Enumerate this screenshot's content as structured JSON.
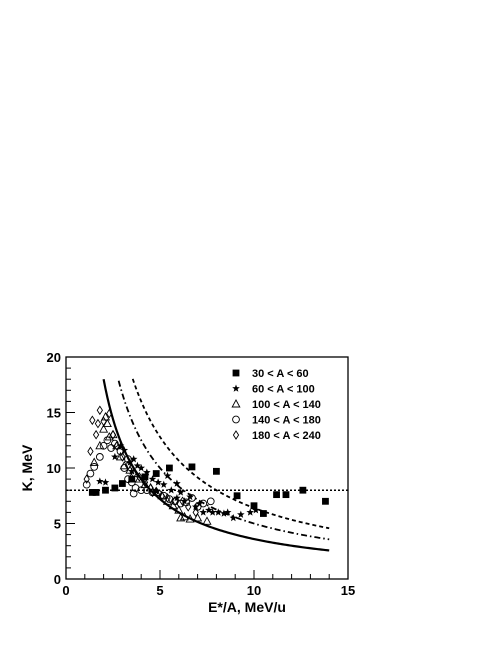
{
  "chart_data": {
    "type": "scatter",
    "title": "",
    "xlabel": "E*/A, MeV/u",
    "ylabel": "K, MeV",
    "xlim": [
      0,
      15
    ],
    "ylim": [
      0,
      20
    ],
    "xticks": [
      0,
      5,
      10,
      15
    ],
    "yticks": [
      0,
      5,
      10,
      15,
      20
    ],
    "xtick_labels": [
      "0",
      "5",
      "10",
      "15"
    ],
    "ytick_labels": [
      "0",
      "5",
      "10",
      "15",
      "20"
    ],
    "grid": false,
    "legend_position": "top-right",
    "series": [
      {
        "name": "30 < A < 60",
        "marker": "square-filled",
        "points": [
          [
            1.4,
            7.8
          ],
          [
            1.6,
            7.8
          ],
          [
            2.1,
            8.0
          ],
          [
            2.6,
            8.2
          ],
          [
            3.0,
            8.6
          ],
          [
            3.5,
            9.0
          ],
          [
            4.2,
            9.2
          ],
          [
            4.8,
            9.5
          ],
          [
            5.5,
            10.0
          ],
          [
            6.7,
            10.1
          ],
          [
            8.0,
            9.7
          ],
          [
            9.1,
            7.5
          ],
          [
            10.0,
            6.6
          ],
          [
            10.5,
            5.9
          ],
          [
            11.2,
            7.6
          ],
          [
            11.7,
            7.6
          ],
          [
            12.6,
            8.0
          ],
          [
            13.8,
            7.0
          ]
        ]
      },
      {
        "name": "60 < A < 100",
        "marker": "star",
        "points": [
          [
            1.8,
            8.8
          ],
          [
            2.1,
            8.7
          ],
          [
            2.6,
            11.0
          ],
          [
            2.9,
            12.0
          ],
          [
            3.1,
            11.6
          ],
          [
            3.4,
            10.5
          ],
          [
            3.6,
            10.8
          ],
          [
            3.8,
            10.2
          ],
          [
            4.0,
            10.0
          ],
          [
            4.3,
            9.6
          ],
          [
            4.6,
            9.0
          ],
          [
            4.9,
            8.7
          ],
          [
            5.2,
            8.5
          ],
          [
            5.4,
            9.3
          ],
          [
            5.6,
            8.0
          ],
          [
            5.9,
            8.6
          ],
          [
            6.1,
            7.8
          ],
          [
            6.3,
            7.0
          ],
          [
            6.6,
            7.4
          ],
          [
            6.9,
            6.5
          ],
          [
            7.1,
            6.8
          ],
          [
            7.3,
            6.0
          ],
          [
            7.6,
            6.2
          ],
          [
            7.8,
            6.0
          ],
          [
            8.1,
            6.0
          ],
          [
            8.4,
            5.9
          ],
          [
            8.6,
            6.0
          ],
          [
            8.9,
            5.5
          ],
          [
            9.3,
            5.8
          ],
          [
            9.8,
            6.0
          ],
          [
            10.1,
            6.2
          ],
          [
            3.5,
            9.7
          ],
          [
            4.8,
            7.9
          ],
          [
            5.9,
            7.3
          ]
        ]
      },
      {
        "name": "100 < A < 140",
        "marker": "triangle-open",
        "points": [
          [
            1.5,
            10.5
          ],
          [
            1.8,
            12.0
          ],
          [
            2.0,
            13.5
          ],
          [
            2.2,
            14.0
          ],
          [
            2.3,
            12.8
          ],
          [
            2.5,
            13.0
          ],
          [
            2.7,
            12.0
          ],
          [
            2.9,
            11.0
          ],
          [
            3.1,
            10.2
          ],
          [
            3.4,
            9.8
          ],
          [
            3.6,
            9.5
          ],
          [
            3.9,
            9.0
          ],
          [
            4.2,
            8.5
          ],
          [
            4.5,
            8.2
          ],
          [
            4.8,
            7.8
          ],
          [
            5.1,
            7.5
          ],
          [
            5.4,
            7.0
          ],
          [
            5.7,
            6.6
          ],
          [
            6.0,
            6.2
          ],
          [
            6.3,
            5.6
          ],
          [
            6.6,
            5.4
          ],
          [
            7.0,
            5.5
          ],
          [
            7.5,
            5.2
          ],
          [
            6.1,
            5.5
          ],
          [
            2.1,
            14.6
          ]
        ]
      },
      {
        "name": "140 < A < 180",
        "marker": "circle-open",
        "points": [
          [
            1.1,
            8.5
          ],
          [
            1.3,
            9.5
          ],
          [
            1.5,
            10.1
          ],
          [
            1.8,
            11.0
          ],
          [
            2.0,
            12.0
          ],
          [
            2.2,
            12.5
          ],
          [
            2.4,
            11.8
          ],
          [
            2.6,
            12.2
          ],
          [
            2.9,
            11.5
          ],
          [
            3.1,
            10.0
          ],
          [
            3.3,
            9.0
          ],
          [
            3.5,
            8.7
          ],
          [
            3.7,
            8.2
          ],
          [
            4.0,
            8.0
          ],
          [
            4.3,
            8.0
          ],
          [
            4.6,
            7.8
          ],
          [
            4.9,
            7.7
          ],
          [
            5.2,
            7.5
          ],
          [
            5.5,
            7.2
          ],
          [
            5.8,
            7.0
          ],
          [
            6.1,
            6.8
          ],
          [
            6.4,
            6.9
          ],
          [
            6.7,
            7.3
          ],
          [
            7.0,
            6.5
          ],
          [
            7.3,
            6.8
          ],
          [
            7.7,
            7.0
          ],
          [
            3.3,
            10.8
          ],
          [
            3.6,
            7.7
          ]
        ]
      },
      {
        "name": "180 < A < 240",
        "marker": "diamond-open",
        "points": [
          [
            1.1,
            9.0
          ],
          [
            1.3,
            11.5
          ],
          [
            1.6,
            13.0
          ],
          [
            1.7,
            14.0
          ],
          [
            1.8,
            15.2
          ],
          [
            2.0,
            14.2
          ],
          [
            2.3,
            14.9
          ],
          [
            2.5,
            13.0
          ],
          [
            2.7,
            12.0
          ],
          [
            3.0,
            11.0
          ],
          [
            3.3,
            10.2
          ],
          [
            3.6,
            9.5
          ],
          [
            3.9,
            9.2
          ],
          [
            4.2,
            8.7
          ],
          [
            4.5,
            8.2
          ],
          [
            4.8,
            7.9
          ],
          [
            5.1,
            7.5
          ],
          [
            5.4,
            7.3
          ],
          [
            5.8,
            7.0
          ],
          [
            6.2,
            7.0
          ],
          [
            6.5,
            6.5
          ],
          [
            6.9,
            6.0
          ],
          [
            1.4,
            14.3
          ],
          [
            4.6,
            7.8
          ]
        ]
      }
    ],
    "curves": [
      {
        "style": "solid",
        "function": "K = 36 / (E*/A)",
        "x_range": [
          2.0,
          14.0
        ]
      },
      {
        "style": "dash-dot",
        "function": "K = 50 / (E*/A)",
        "x_range": [
          2.8,
          14.0
        ]
      },
      {
        "style": "dashed",
        "function": "K = 64 / (E*/A)",
        "x_range": [
          3.55,
          14.0
        ]
      },
      {
        "style": "dotted",
        "function": "K = 8",
        "x_range": [
          0,
          15
        ]
      }
    ]
  }
}
